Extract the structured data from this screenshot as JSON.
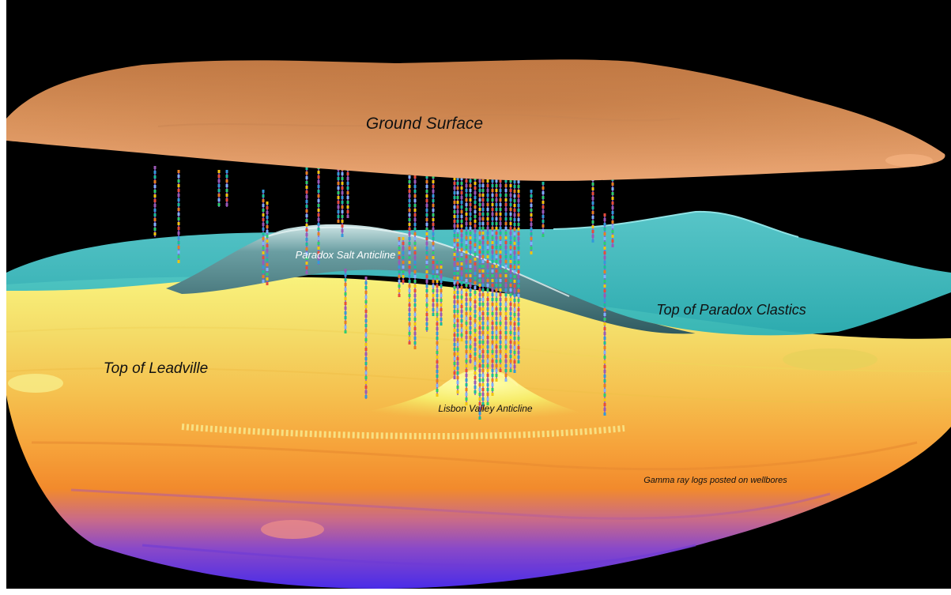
{
  "labels": {
    "ground_surface": "Ground Surface",
    "salt_anticline": "Paradox Salt Anticline",
    "paradox_clastics": "Top of Paradox Clastics",
    "leadville": "Top of Leadville",
    "lisbon_anticline": "Lisbon Valley Anticline",
    "gamma_note": "Gamma ray logs posted on wellbores"
  },
  "colors": {
    "background": "#000000",
    "ground_surface": "#d8915a",
    "paradox_clastics": "#48c2c6",
    "salt_anticline": "#3f6f74",
    "leadville_top": "#f6ea6a",
    "leadville_deep": "#4a2ce8",
    "label_dark": "#111111",
    "label_light": "#ffffff"
  }
}
